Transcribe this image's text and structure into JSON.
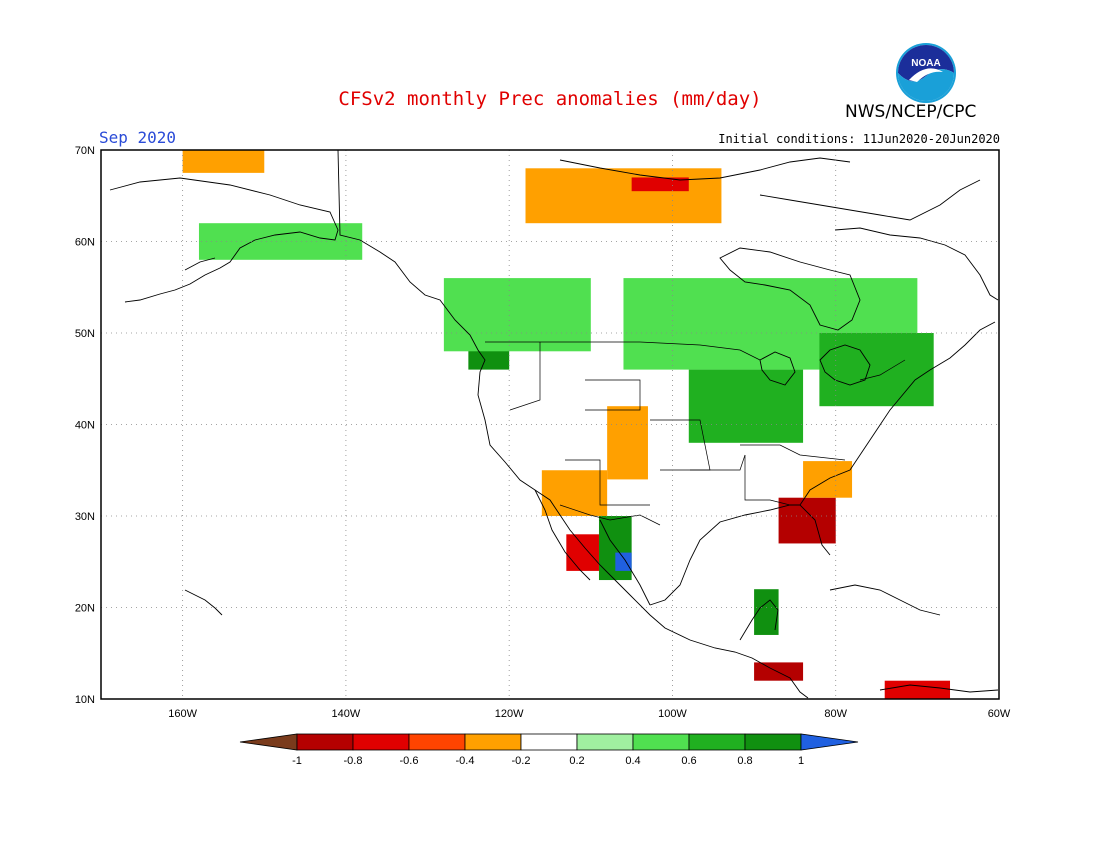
{
  "header": {
    "title": "CFSv2 monthly Prec anomalies (mm/day)",
    "month": "Sep 2020",
    "initial_conditions": "Initial conditions: 11Jun2020-20Jun2020",
    "agency": "NWS/NCEP/CPC",
    "logo_text": "NOAA"
  },
  "map": {
    "lon_range": [
      -170,
      -60
    ],
    "lat_range": [
      10,
      70
    ],
    "lat_labels": [
      "70N",
      "60N",
      "50N",
      "40N",
      "30N",
      "20N",
      "10N"
    ],
    "lon_labels": [
      "160W",
      "140W",
      "120W",
      "100W",
      "80W",
      "60W"
    ],
    "anomaly_regions": [
      {
        "name": "alaska-north",
        "level": -0.4,
        "lon": [
          -160,
          -150
        ],
        "lat": [
          67.5,
          70
        ]
      },
      {
        "name": "alaska-south-wet",
        "level": 0.4,
        "lon": [
          -158,
          -138
        ],
        "lat": [
          58,
          62
        ]
      },
      {
        "name": "pacific-nw-wet",
        "level": 0.8,
        "lon": [
          -125,
          -120
        ],
        "lat": [
          46,
          52
        ]
      },
      {
        "name": "western-canada-wet",
        "level": 0.4,
        "lon": [
          -128,
          -110
        ],
        "lat": [
          48,
          56
        ]
      },
      {
        "name": "arctic-canada-dry",
        "level": -0.4,
        "lon": [
          -118,
          -94
        ],
        "lat": [
          62,
          68
        ]
      },
      {
        "name": "arctic-canada-core",
        "level": -0.6,
        "lon": [
          -105,
          -98
        ],
        "lat": [
          65.5,
          67
        ]
      },
      {
        "name": "central-canada-wet",
        "level": 0.4,
        "lon": [
          -106,
          -70
        ],
        "lat": [
          46,
          56
        ]
      },
      {
        "name": "great-lakes-wet",
        "level": 0.6,
        "lon": [
          -98,
          -84
        ],
        "lat": [
          38,
          46
        ]
      },
      {
        "name": "ne-us-wet",
        "level": 0.6,
        "lon": [
          -82,
          -68
        ],
        "lat": [
          42,
          50
        ]
      },
      {
        "name": "colorado-dry",
        "level": -0.4,
        "lon": [
          -108,
          -103
        ],
        "lat": [
          34,
          42
        ]
      },
      {
        "name": "southwest-dry",
        "level": -0.4,
        "lon": [
          -116,
          -108
        ],
        "lat": [
          30,
          35
        ]
      },
      {
        "name": "baja-dry",
        "level": -0.6,
        "lon": [
          -113,
          -109
        ],
        "lat": [
          24,
          28
        ]
      },
      {
        "name": "florida-dry",
        "level": -0.8,
        "lon": [
          -87,
          -80
        ],
        "lat": [
          27,
          32
        ]
      },
      {
        "name": "southeast-dry",
        "level": -0.4,
        "lon": [
          -84,
          -78
        ],
        "lat": [
          32,
          36
        ]
      },
      {
        "name": "sierra-madre-wet",
        "level": 0.8,
        "lon": [
          -109,
          -105
        ],
        "lat": [
          23,
          30
        ]
      },
      {
        "name": "sierra-madre-core",
        "level": 1.0,
        "lon": [
          -107,
          -105
        ],
        "lat": [
          24,
          26
        ]
      },
      {
        "name": "yucatan-wet",
        "level": 0.8,
        "lon": [
          -90,
          -87
        ],
        "lat": [
          17,
          22
        ]
      },
      {
        "name": "central-america-dry",
        "level": -0.8,
        "lon": [
          -90,
          -84
        ],
        "lat": [
          12,
          14
        ]
      },
      {
        "name": "venezuela-dry",
        "level": -0.6,
        "lon": [
          -74,
          -66
        ],
        "lat": [
          10,
          12
        ]
      }
    ]
  },
  "colorbar": {
    "labels": [
      "-1",
      "-0.8",
      "-0.6",
      "-0.4",
      "-0.2",
      "0.2",
      "0.4",
      "0.6",
      "0.8",
      "1"
    ],
    "colors": [
      "#7a3b1c",
      "#b40000",
      "#e00000",
      "#ff4400",
      "#ffa000",
      "#ffffff",
      "#a0f0a0",
      "#50e050",
      "#20b020",
      "#109010",
      "#2060e0"
    ]
  }
}
